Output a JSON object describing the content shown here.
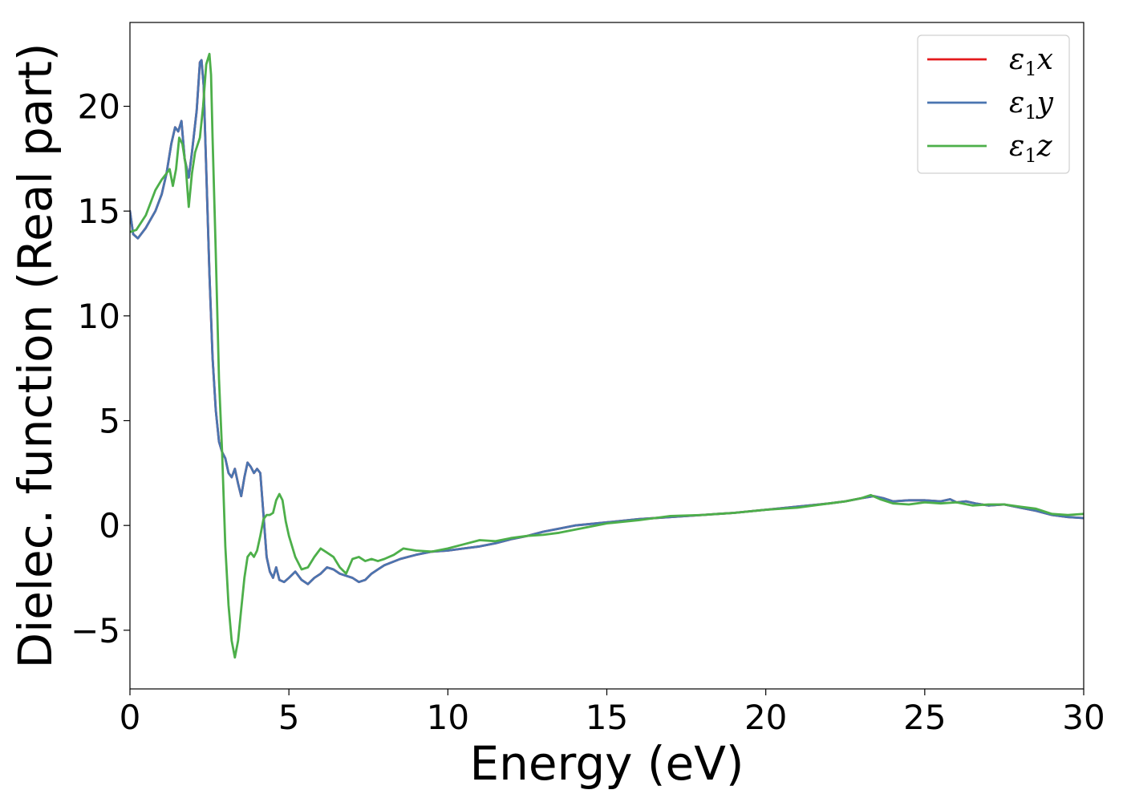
{
  "chart_data": {
    "type": "line",
    "xlabel": "Energy (eV)",
    "ylabel": "Dielec. function (Real part)",
    "xlim": [
      0,
      30
    ],
    "ylim": [
      -7.8,
      24
    ],
    "xticks": [
      0,
      5,
      10,
      15,
      20,
      25,
      30
    ],
    "yticks": [
      -5,
      0,
      5,
      10,
      15,
      20
    ],
    "xtick_labels": [
      "0",
      "5",
      "10",
      "15",
      "20",
      "25",
      "30"
    ],
    "ytick_labels": [
      "−5",
      "0",
      "5",
      "10",
      "15",
      "20"
    ],
    "grid": false,
    "legend_position": "top-right",
    "series": [
      {
        "name": "ε₁x",
        "legend": {
          "symbol": "ε",
          "sub": "1",
          "var": "x"
        },
        "color": "#e41a1c",
        "x": [
          0,
          0.1,
          0.25,
          0.5,
          0.8,
          1.0,
          1.15,
          1.3,
          1.42,
          1.52,
          1.62,
          1.72,
          1.85,
          1.95,
          2.1,
          2.2,
          2.25,
          2.32,
          2.4,
          2.5,
          2.6,
          2.7,
          2.8,
          2.9,
          3.0,
          3.1,
          3.2,
          3.3,
          3.4,
          3.5,
          3.6,
          3.7,
          3.8,
          3.9,
          4.0,
          4.1,
          4.2,
          4.3,
          4.4,
          4.5,
          4.6,
          4.7,
          4.85,
          5.0,
          5.2,
          5.4,
          5.6,
          5.8,
          6.0,
          6.2,
          6.4,
          6.6,
          6.8,
          7.0,
          7.2,
          7.4,
          7.6,
          7.8,
          8.0,
          8.5,
          9.0,
          9.5,
          10.0,
          10.5,
          11.0,
          11.5,
          12.0,
          12.5,
          13.0,
          13.5,
          14.0,
          15.0,
          16.0,
          17.0,
          18.0,
          19.0,
          20.0,
          21.0,
          22.0,
          22.5,
          23.0,
          23.4,
          23.7,
          24.0,
          24.5,
          25.0,
          25.5,
          25.8,
          26.0,
          26.3,
          26.6,
          27.0,
          27.5,
          28.0,
          28.5,
          29.0,
          29.5,
          30.0
        ],
        "y": [
          15.0,
          13.9,
          13.7,
          14.2,
          15.0,
          15.8,
          16.8,
          18.2,
          19.0,
          18.8,
          19.3,
          17.5,
          16.6,
          17.8,
          19.8,
          22.1,
          22.2,
          21.0,
          17.0,
          12.0,
          8.0,
          5.5,
          4.0,
          3.5,
          3.2,
          2.5,
          2.3,
          2.7,
          2.0,
          1.4,
          2.3,
          3.0,
          2.8,
          2.5,
          2.7,
          2.5,
          0.5,
          -1.5,
          -2.2,
          -2.5,
          -2.0,
          -2.6,
          -2.7,
          -2.5,
          -2.2,
          -2.6,
          -2.8,
          -2.5,
          -2.3,
          -2.0,
          -2.1,
          -2.3,
          -2.4,
          -2.5,
          -2.7,
          -2.6,
          -2.3,
          -2.1,
          -1.9,
          -1.6,
          -1.4,
          -1.25,
          -1.2,
          -1.1,
          -1.0,
          -0.85,
          -0.65,
          -0.5,
          -0.3,
          -0.15,
          0.0,
          0.15,
          0.3,
          0.4,
          0.5,
          0.6,
          0.75,
          0.9,
          1.05,
          1.15,
          1.3,
          1.4,
          1.3,
          1.15,
          1.2,
          1.2,
          1.15,
          1.25,
          1.1,
          1.15,
          1.05,
          0.95,
          1.0,
          0.85,
          0.7,
          0.5,
          0.4,
          0.35
        ]
      },
      {
        "name": "ε₁y",
        "legend": {
          "symbol": "ε",
          "sub": "1",
          "var": "y"
        },
        "color": "#4a75b0",
        "x": [
          0,
          0.1,
          0.25,
          0.5,
          0.8,
          1.0,
          1.15,
          1.3,
          1.42,
          1.52,
          1.62,
          1.72,
          1.85,
          1.95,
          2.1,
          2.2,
          2.25,
          2.32,
          2.4,
          2.5,
          2.6,
          2.7,
          2.8,
          2.9,
          3.0,
          3.1,
          3.2,
          3.3,
          3.4,
          3.5,
          3.6,
          3.7,
          3.8,
          3.9,
          4.0,
          4.1,
          4.2,
          4.3,
          4.4,
          4.5,
          4.6,
          4.7,
          4.85,
          5.0,
          5.2,
          5.4,
          5.6,
          5.8,
          6.0,
          6.2,
          6.4,
          6.6,
          6.8,
          7.0,
          7.2,
          7.4,
          7.6,
          7.8,
          8.0,
          8.5,
          9.0,
          9.5,
          10.0,
          10.5,
          11.0,
          11.5,
          12.0,
          12.5,
          13.0,
          13.5,
          14.0,
          15.0,
          16.0,
          17.0,
          18.0,
          19.0,
          20.0,
          21.0,
          22.0,
          22.5,
          23.0,
          23.4,
          23.7,
          24.0,
          24.5,
          25.0,
          25.5,
          25.8,
          26.0,
          26.3,
          26.6,
          27.0,
          27.5,
          28.0,
          28.5,
          29.0,
          29.5,
          30.0
        ],
        "y": [
          15.0,
          13.9,
          13.7,
          14.2,
          15.0,
          15.8,
          16.8,
          18.2,
          19.0,
          18.8,
          19.3,
          17.5,
          16.6,
          17.8,
          19.8,
          22.1,
          22.2,
          21.0,
          17.0,
          12.0,
          8.0,
          5.5,
          4.0,
          3.5,
          3.2,
          2.5,
          2.3,
          2.7,
          2.0,
          1.4,
          2.3,
          3.0,
          2.8,
          2.5,
          2.7,
          2.5,
          0.5,
          -1.5,
          -2.2,
          -2.5,
          -2.0,
          -2.6,
          -2.7,
          -2.5,
          -2.2,
          -2.6,
          -2.8,
          -2.5,
          -2.3,
          -2.0,
          -2.1,
          -2.3,
          -2.4,
          -2.5,
          -2.7,
          -2.6,
          -2.3,
          -2.1,
          -1.9,
          -1.6,
          -1.4,
          -1.25,
          -1.2,
          -1.1,
          -1.0,
          -0.85,
          -0.65,
          -0.5,
          -0.3,
          -0.15,
          0.0,
          0.15,
          0.3,
          0.4,
          0.5,
          0.6,
          0.75,
          0.9,
          1.05,
          1.15,
          1.3,
          1.4,
          1.3,
          1.15,
          1.2,
          1.2,
          1.15,
          1.25,
          1.1,
          1.15,
          1.05,
          0.95,
          1.0,
          0.85,
          0.7,
          0.5,
          0.4,
          0.35
        ]
      },
      {
        "name": "ε₁z",
        "legend": {
          "symbol": "ε",
          "sub": "1",
          "var": "z"
        },
        "color": "#4daf4a",
        "x": [
          0,
          0.2,
          0.5,
          0.8,
          1.0,
          1.15,
          1.25,
          1.35,
          1.45,
          1.55,
          1.65,
          1.75,
          1.85,
          1.95,
          2.05,
          2.2,
          2.3,
          2.4,
          2.5,
          2.55,
          2.6,
          2.7,
          2.8,
          2.9,
          3.0,
          3.1,
          3.2,
          3.3,
          3.4,
          3.5,
          3.6,
          3.7,
          3.8,
          3.9,
          4.0,
          4.1,
          4.2,
          4.3,
          4.4,
          4.5,
          4.6,
          4.7,
          4.8,
          4.9,
          5.0,
          5.2,
          5.4,
          5.6,
          5.8,
          6.0,
          6.2,
          6.4,
          6.6,
          6.8,
          7.0,
          7.2,
          7.4,
          7.6,
          7.8,
          8.0,
          8.3,
          8.6,
          9.0,
          9.5,
          10.0,
          10.5,
          11.0,
          11.5,
          12.0,
          12.5,
          13.0,
          13.5,
          14.0,
          15.0,
          16.0,
          17.0,
          18.0,
          19.0,
          20.0,
          21.0,
          22.0,
          22.5,
          23.0,
          23.3,
          23.6,
          24.0,
          24.5,
          25.0,
          25.5,
          26.0,
          26.5,
          27.0,
          27.5,
          28.0,
          28.5,
          29.0,
          29.5,
          30.0
        ],
        "y": [
          14.0,
          14.1,
          14.8,
          16.0,
          16.5,
          16.8,
          17.0,
          16.2,
          17.0,
          18.5,
          18.2,
          17.2,
          15.2,
          16.8,
          17.8,
          18.5,
          20.0,
          22.0,
          22.5,
          21.5,
          18.5,
          13.0,
          7.0,
          3.5,
          -1.0,
          -3.8,
          -5.5,
          -6.3,
          -5.5,
          -4.0,
          -2.5,
          -1.5,
          -1.3,
          -1.5,
          -1.2,
          -0.5,
          0.3,
          0.5,
          0.5,
          0.6,
          1.2,
          1.5,
          1.2,
          0.2,
          -0.5,
          -1.5,
          -2.1,
          -2.0,
          -1.5,
          -1.1,
          -1.3,
          -1.5,
          -2.0,
          -2.3,
          -1.6,
          -1.5,
          -1.7,
          -1.6,
          -1.7,
          -1.6,
          -1.4,
          -1.1,
          -1.2,
          -1.25,
          -1.1,
          -0.9,
          -0.7,
          -0.75,
          -0.6,
          -0.5,
          -0.45,
          -0.35,
          -0.2,
          0.1,
          0.25,
          0.45,
          0.5,
          0.6,
          0.75,
          0.85,
          1.05,
          1.15,
          1.3,
          1.45,
          1.25,
          1.05,
          1.0,
          1.1,
          1.05,
          1.1,
          0.95,
          1.0,
          1.0,
          0.9,
          0.8,
          0.55,
          0.5,
          0.55
        ]
      }
    ]
  }
}
